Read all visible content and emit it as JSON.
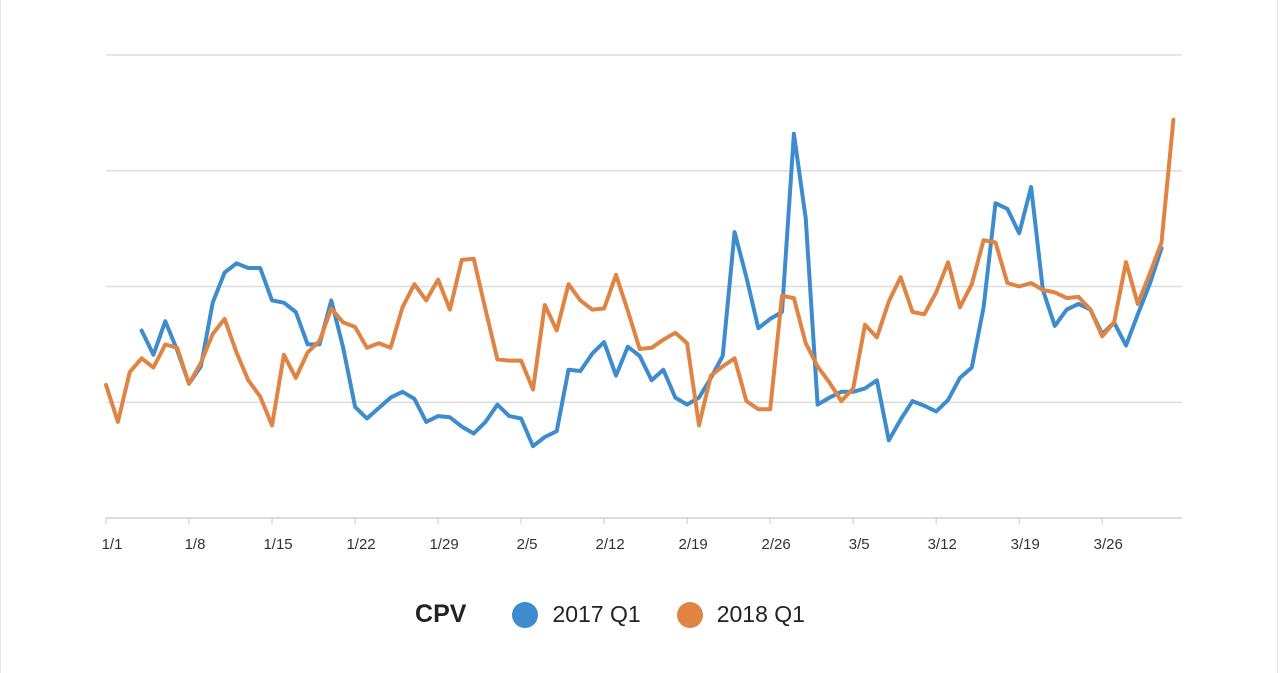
{
  "chart_data": {
    "type": "line",
    "title": "",
    "xlabel": "",
    "ylabel": "",
    "ylim": [
      0,
      4
    ],
    "y_gridlines": [
      1,
      2,
      3,
      4
    ],
    "y_tick_labels_shown": false,
    "grid": true,
    "legend_position": "bottom-center",
    "x_tick_labels": [
      "1/1",
      "1/8",
      "1/15",
      "1/22",
      "1/29",
      "2/5",
      "2/12",
      "2/19",
      "2/26",
      "3/5",
      "3/12",
      "3/19",
      "3/26"
    ],
    "x_tick_days": [
      0,
      7,
      14,
      21,
      28,
      35,
      42,
      49,
      56,
      63,
      70,
      77,
      84
    ],
    "x_range_days": [
      0,
      90.5
    ],
    "series": [
      {
        "name": "2017 Q1",
        "color": "#3d8ccd",
        "start_day": 3,
        "values": [
          1.62,
          1.41,
          1.7,
          1.45,
          1.16,
          1.31,
          1.86,
          2.12,
          2.2,
          2.16,
          2.16,
          1.88,
          1.86,
          1.78,
          1.5,
          1.5,
          1.88,
          1.47,
          0.96,
          0.86,
          0.95,
          1.04,
          1.09,
          1.03,
          0.83,
          0.88,
          0.87,
          0.79,
          0.73,
          0.83,
          0.98,
          0.88,
          0.86,
          0.62,
          0.7,
          0.75,
          1.28,
          1.27,
          1.42,
          1.52,
          1.23,
          1.48,
          1.4,
          1.19,
          1.28,
          1.04,
          0.98,
          1.04,
          1.21,
          1.4,
          2.47,
          2.08,
          1.64,
          1.72,
          1.78,
          3.32,
          2.59,
          0.98,
          1.04,
          1.09,
          1.09,
          1.12,
          1.19,
          0.67,
          0.85,
          1.01,
          0.97,
          0.92,
          1.02,
          1.21,
          1.3,
          1.82,
          2.72,
          2.67,
          2.46,
          2.86,
          1.97,
          1.66,
          1.8,
          1.85,
          1.8,
          1.59,
          1.69,
          1.49,
          1.76,
          2.02,
          2.33
        ]
      },
      {
        "name": "2018 Q1",
        "color": "#e08444",
        "start_day": 0,
        "values": [
          1.15,
          0.83,
          1.26,
          1.38,
          1.3,
          1.5,
          1.47,
          1.16,
          1.34,
          1.59,
          1.72,
          1.43,
          1.19,
          1.05,
          0.8,
          1.41,
          1.21,
          1.43,
          1.53,
          1.81,
          1.69,
          1.65,
          1.47,
          1.51,
          1.47,
          1.82,
          2.02,
          1.88,
          2.06,
          1.8,
          2.23,
          2.24,
          1.8,
          1.37,
          1.36,
          1.36,
          1.11,
          1.84,
          1.62,
          2.02,
          1.88,
          1.8,
          1.81,
          2.1,
          1.79,
          1.46,
          1.47,
          1.54,
          1.6,
          1.51,
          0.8,
          1.23,
          1.31,
          1.38,
          1.01,
          0.94,
          0.94,
          1.92,
          1.9,
          1.51,
          1.31,
          1.17,
          1.01,
          1.12,
          1.67,
          1.56,
          1.87,
          2.08,
          1.78,
          1.76,
          1.95,
          2.21,
          1.82,
          2.02,
          2.4,
          2.38,
          2.03,
          2.0,
          2.03,
          1.97,
          1.95,
          1.9,
          1.91,
          1.8,
          1.57,
          1.69,
          2.21,
          1.85,
          2.11,
          2.38,
          3.44
        ]
      }
    ]
  },
  "legend": {
    "title": "CPV",
    "items": [
      {
        "label": "2017 Q1",
        "color": "#3d8ccd"
      },
      {
        "label": "2018 Q1",
        "color": "#e08444"
      }
    ]
  },
  "colors": {
    "grid": "#dddddd",
    "axis": "#d0d0d0",
    "text": "#333333"
  }
}
